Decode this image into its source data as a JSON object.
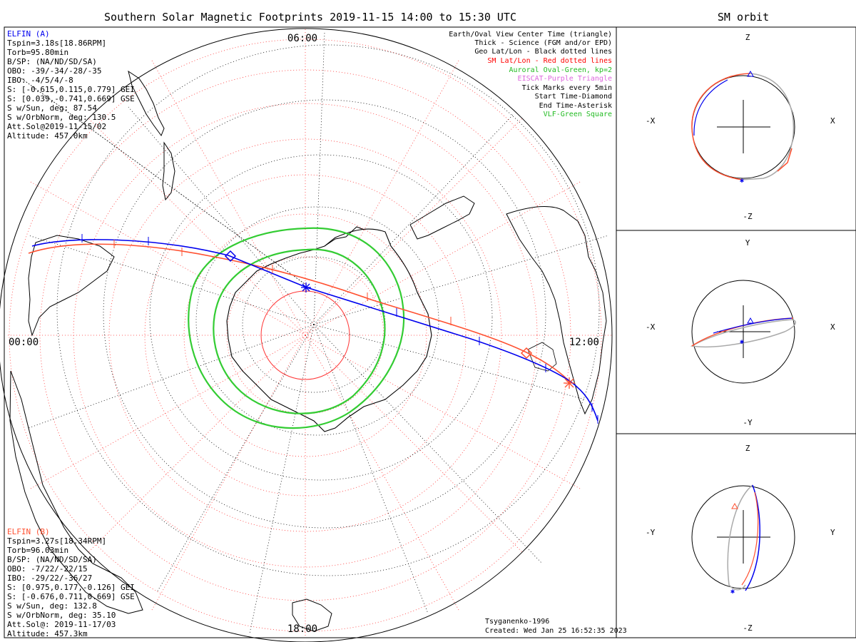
{
  "title": "Southern Solar Magnetic Footprints 2019-11-15 14:00 to 15:30 UTC",
  "orbit_title": "SM orbit",
  "clock_labels": {
    "top": "06:00",
    "left": "00:00",
    "right": "12:00",
    "bottom": "18:00"
  },
  "sc_a": {
    "name": "ELFIN (A)",
    "color": "#0000ee",
    "lines": [
      "Tspin=3.18s[18.86RPM]",
      "Torb=95.80min",
      "B/SP: (NA/ND/SD/SA)",
      "OBO: -39/-34/-28/-35",
      "IBO: -4/5/4/-8",
      "S: [-0.615,0.115,0.779] GEI",
      "S: [0.039,-0.741,0.669] GSE",
      "S w/Sun, deg: 87.54",
      "S w/OrbNorm, deg: 130.5",
      "Att.Sol@2019-11-15/02",
      "Altitude: 457.0km"
    ]
  },
  "sc_b": {
    "name": "ELFIN (B)",
    "color": "#ff5030",
    "lines": [
      "Tspin=3.27s[18.34RPM]",
      "Torb=96.03min",
      "B/SP: (NA/ND/SD/SA)",
      "OBO: -7/22/-22/15",
      "IBO: -29/22/-36/27",
      "S: [0.975,0.177,-0.126] GEI",
      "S: [-0.676,0.711,0.669] GSE",
      "S w/Sun, deg: 132.8",
      "S w/OrbNorm, deg: 35.10",
      "Att.Sol@: 2019-11-17/03",
      "Altitude: 457.3km"
    ]
  },
  "legend": [
    {
      "text": "Earth/Oval View Center Time (triangle)",
      "color": "#000000"
    },
    {
      "text": "Thick - Science (FGM and/or EPD)",
      "color": "#000000"
    },
    {
      "text": "Geo Lat/Lon - Black dotted lines",
      "color": "#000000"
    },
    {
      "text": "SM Lat/Lon - Red dotted lines",
      "color": "#ff0000"
    },
    {
      "text": "Auroral Oval-Green, kp=2",
      "color": "#22bb22"
    },
    {
      "text": "EISCAT-Purple Triangle",
      "color": "#dd66dd"
    },
    {
      "text": "Tick Marks every 5min",
      "color": "#000000"
    },
    {
      "text": "Start Time-Diamond",
      "color": "#000000"
    },
    {
      "text": "End Time-Asterisk",
      "color": "#000000"
    },
    {
      "text": "VLF-Green Square",
      "color": "#22bb22"
    }
  ],
  "footer": {
    "model": "Tsyganenko-1996",
    "created": "Created: Wed Jan 25 16:52:35 2023"
  },
  "orbit_panels": [
    {
      "top": "Z",
      "bottom": "-Z",
      "left": "-X",
      "right": "X"
    },
    {
      "top": "Y",
      "bottom": "-Y",
      "left": "-X",
      "right": "X"
    },
    {
      "top": "Z",
      "bottom": "-Z",
      "left": "-Y",
      "right": "Y"
    }
  ],
  "colors": {
    "sc_a": "#0000ee",
    "sc_b": "#ff5030",
    "oval": "#33cc33",
    "sm_grid": "#ff3333",
    "geo_grid": "#000000"
  }
}
